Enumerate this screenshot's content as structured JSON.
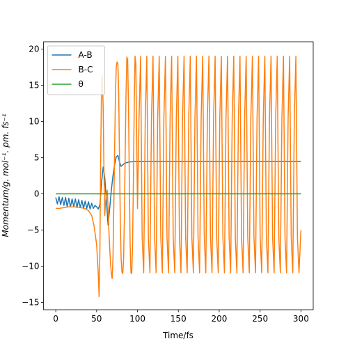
{
  "chart_data": {
    "type": "line",
    "title": "",
    "xlabel": "Time/fs",
    "ylabel": "Momentum/g. mol⁻¹. pm. fs⁻¹",
    "xlim": [
      -15,
      315
    ],
    "ylim": [
      -16,
      21
    ],
    "xticks": [
      0,
      50,
      100,
      150,
      200,
      250,
      300
    ],
    "yticks": [
      -15,
      -10,
      -5,
      0,
      5,
      10,
      15,
      20
    ],
    "grid": false,
    "legend_position": "top-left",
    "series": [
      {
        "name": "A-B",
        "color": "#1f77b4",
        "x": [
          0,
          2,
          4,
          6,
          8,
          10,
          12,
          14,
          16,
          18,
          20,
          22,
          24,
          26,
          28,
          30,
          32,
          34,
          36,
          38,
          40,
          42,
          44,
          46,
          48,
          50,
          52,
          54,
          56,
          58,
          60,
          62,
          64,
          66,
          68,
          70,
          72,
          74,
          76,
          78,
          80,
          82,
          84,
          86,
          88,
          90,
          95,
          100,
          110,
          120,
          140,
          160,
          180,
          200,
          220,
          240,
          260,
          280,
          300
        ],
        "y": [
          -0.5,
          -1.4,
          -0.4,
          -1.5,
          -0.5,
          -1.6,
          -0.5,
          -1.8,
          -0.6,
          -1.8,
          -0.7,
          -1.8,
          -0.7,
          -1.9,
          -0.8,
          -1.9,
          -0.9,
          -2.0,
          -1.0,
          -2.0,
          -1.1,
          -2.1,
          -1.3,
          -2.0,
          -1.6,
          -1.8,
          -2.1,
          -1.5,
          1.5,
          3.7,
          2.2,
          -1.0,
          -4.3,
          -2.0,
          0.5,
          2.5,
          4.0,
          5.1,
          5.3,
          4.4,
          3.8,
          4.0,
          4.2,
          4.3,
          4.35,
          4.4,
          4.45,
          4.45,
          4.5,
          4.5,
          4.5,
          4.5,
          4.5,
          4.5,
          4.5,
          4.5,
          4.5,
          4.5,
          4.5
        ]
      },
      {
        "name": "B-C",
        "color": "#ff7f0e",
        "x": [
          0,
          5,
          10,
          15,
          20,
          25,
          30,
          35,
          40,
          44,
          47,
          50,
          52,
          53,
          54,
          55,
          56,
          57,
          58,
          59,
          60,
          61,
          62,
          63,
          64,
          65,
          66,
          67,
          68,
          69,
          70,
          71,
          72,
          73,
          74,
          75,
          76,
          77,
          78,
          79,
          80,
          81,
          82,
          83,
          84,
          85,
          86,
          87,
          88,
          89,
          90,
          91,
          92,
          93,
          94,
          95,
          96,
          97,
          98,
          99,
          100
        ],
        "y": [
          -2.0,
          -2.0,
          -1.9,
          -1.8,
          -1.8,
          -1.8,
          -1.9,
          -2.0,
          -2.3,
          -3.0,
          -4.5,
          -7.0,
          -11.0,
          -14.2,
          -8.0,
          5.0,
          15.0,
          16.4,
          12.0,
          3.0,
          -3.0,
          -1.0,
          0.0,
          0.5,
          -2.0,
          -5.0,
          -7.5,
          -9.5,
          -11.0,
          -11.7,
          -9.0,
          -2.0,
          6.0,
          13.5,
          17.5,
          18.2,
          18.0,
          14.0,
          5.0,
          -4.0,
          -9.0,
          -10.8,
          -11.0,
          -9.0,
          -3.0,
          6.0,
          14.0,
          18.9,
          18.5,
          12.0,
          2.0,
          -7.0,
          -10.9,
          -11.0,
          -7.0,
          2.0,
          12.0,
          19.0,
          18.0,
          8.0,
          -2.0
        ],
        "periodic_tail": {
          "x_start": 100,
          "x_end": 300,
          "period": 7.6,
          "peak": 19.0,
          "trough": -10.9,
          "end_value": -5.0
        }
      },
      {
        "name": "θ",
        "color": "#2ca02c",
        "x": [
          0,
          300
        ],
        "y": [
          0,
          0
        ]
      }
    ]
  }
}
